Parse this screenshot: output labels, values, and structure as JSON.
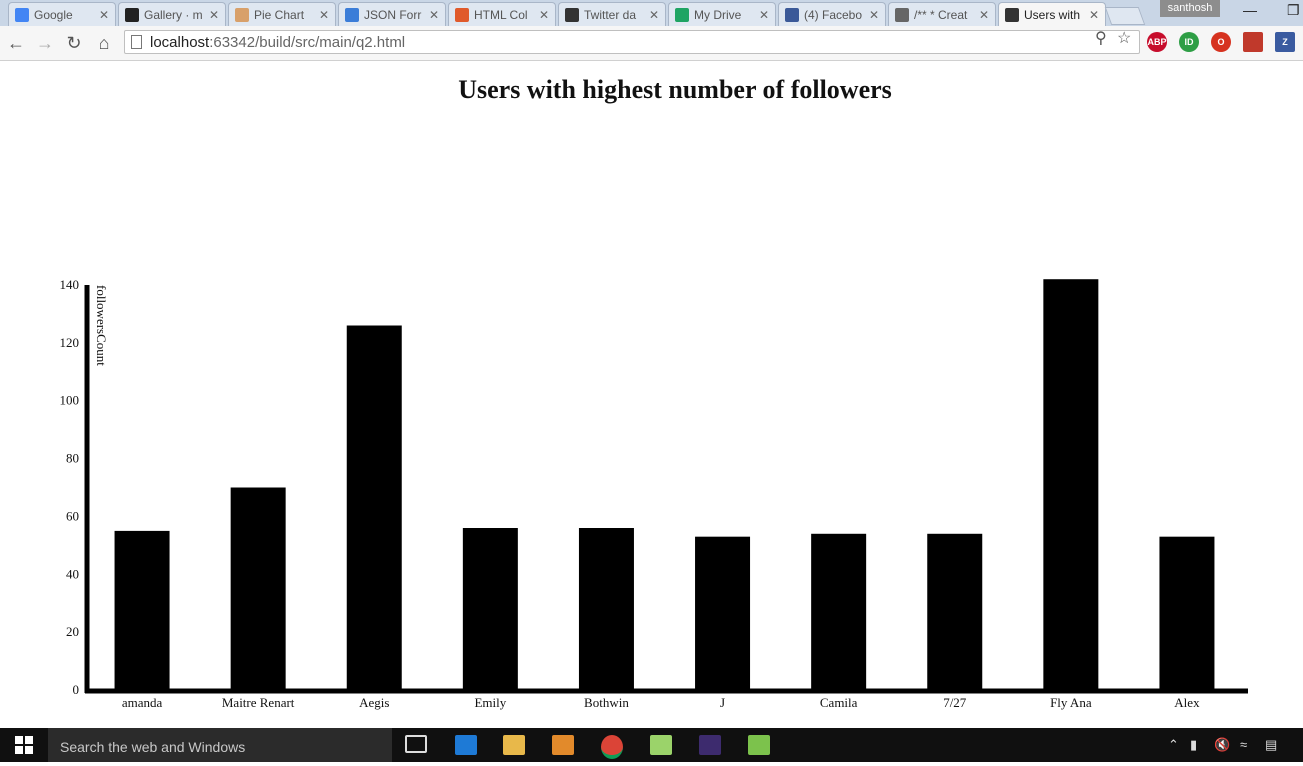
{
  "browser": {
    "tabs": [
      {
        "title": "Google",
        "icon": "google-icon",
        "color": "#4285f4"
      },
      {
        "title": "Gallery · m",
        "icon": "github-icon",
        "color": "#222222"
      },
      {
        "title": "Pie Chart",
        "icon": "chart-icon",
        "color": "#d8a06a"
      },
      {
        "title": "JSON Forr",
        "icon": "check-icon",
        "color": "#3b7dd8"
      },
      {
        "title": "HTML Col",
        "icon": "color-wheel-icon",
        "color": "#e05a2b"
      },
      {
        "title": "Twitter da",
        "icon": "intellij-icon",
        "color": "#333333"
      },
      {
        "title": "My Drive",
        "icon": "drive-icon",
        "color": "#1fa463"
      },
      {
        "title": "(4) Facebo",
        "icon": "facebook-icon",
        "color": "#3b5998"
      },
      {
        "title": "/** * Creat",
        "icon": "code-icon",
        "color": "#666666"
      },
      {
        "title": "Users with",
        "icon": "intellij-icon",
        "color": "#333333"
      }
    ],
    "user": "santhosh",
    "url_host": "localhost",
    "url_path": ":63342/build/src/main/q2.html",
    "extensions": [
      {
        "label": "ABP",
        "color": "#c70d2c"
      },
      {
        "label": "ID",
        "color": "#2e9e45"
      },
      {
        "label": "O",
        "color": "#d6321f"
      },
      {
        "label": "",
        "color": "#c0392b"
      },
      {
        "label": "Z",
        "color": "#3a5ba0"
      }
    ]
  },
  "taskbar": {
    "search_placeholder": "Search the web and Windows"
  },
  "chart_data": {
    "type": "bar",
    "title": "Users with highest number of followers",
    "xlabel": "",
    "ylabel": "followersCount",
    "categories": [
      "amanda",
      "Maitre Renart",
      "Aegis",
      "Emily",
      "Bothwin",
      "J",
      "Camila",
      "7/27",
      "Fly Ana",
      "Alex"
    ],
    "values": [
      55,
      70,
      126,
      56,
      56,
      53,
      54,
      54,
      142,
      53
    ],
    "ylim": [
      0,
      140
    ],
    "yticks": [
      "0",
      "20",
      "40",
      "60",
      "80",
      "100",
      "120",
      "140"
    ],
    "bar_color": "#000000",
    "grid": false
  }
}
